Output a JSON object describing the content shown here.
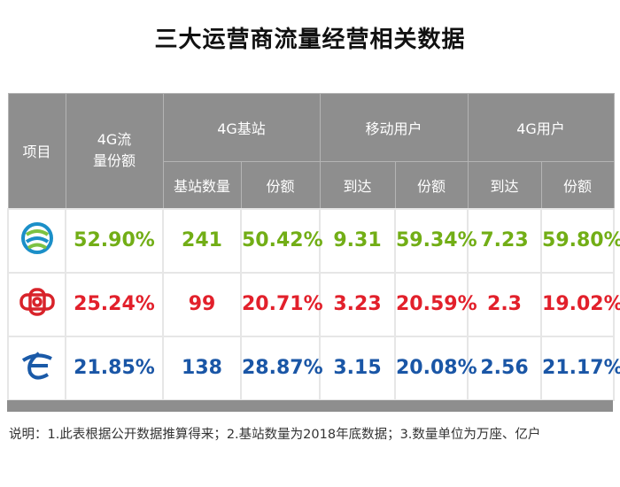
{
  "title": "三大运营商流量经营相关数据",
  "table": {
    "header": {
      "row1": [
        "项目",
        "4G流量份额",
        "4G基站",
        "移动用户",
        "4G用户"
      ],
      "row2": [
        "基站数量",
        "份额",
        "到达",
        "份额",
        "到达",
        "份额"
      ]
    },
    "rows": [
      [
        "52.90%",
        "241",
        "50.42%",
        "9.31",
        "59.34%",
        "7.23",
        "59.80%"
      ],
      [
        "25.24%",
        "99",
        "20.71%",
        "3.23",
        "20.59%",
        "2.3",
        "19.02%"
      ],
      [
        "21.85%",
        "138",
        "28.87%",
        "3.15",
        "20.08%",
        "2.56",
        "21.17%"
      ]
    ]
  },
  "footnote": "说明：1.此表根据公开数据推算得来；2.基站数量为2018年底数据；3.数量单位为万座、亿户"
}
